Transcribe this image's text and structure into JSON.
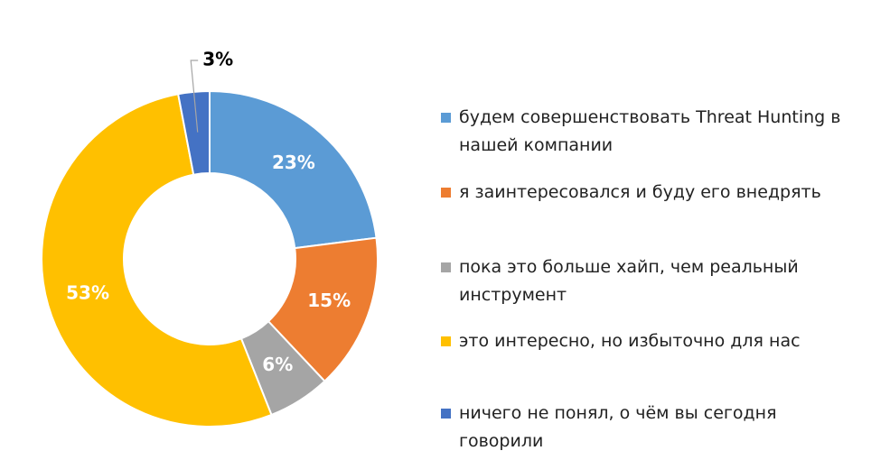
{
  "chart_data": {
    "type": "donut",
    "categories": [
      "будем совершенствовать Threat Hunting в нашей компании",
      "я заинтересовался и буду его внедрять",
      "пока это больше хайп, чем реальный инструмент",
      "это интересно, но избыточно для нас",
      "ничего не понял, о чём вы сегодня говорили"
    ],
    "values": [
      23,
      15,
      6,
      53,
      3
    ],
    "value_labels": [
      "23%",
      "15%",
      "6%",
      "53%",
      "3%"
    ],
    "colors": [
      "#5b9bd5",
      "#ed7d31",
      "#a5a5a5",
      "#ffc000",
      "#4472c4"
    ],
    "legend": "right"
  }
}
